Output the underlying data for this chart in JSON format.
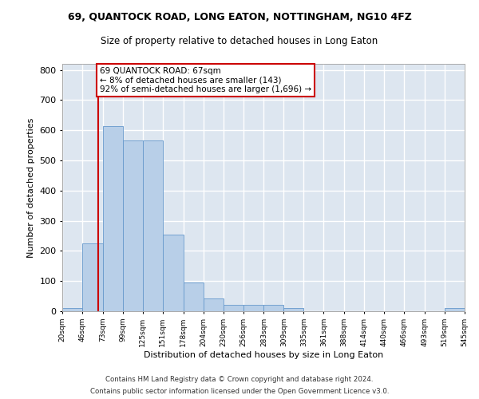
{
  "title_main": "69, QUANTOCK ROAD, LONG EATON, NOTTINGHAM, NG10 4FZ",
  "title_sub": "Size of property relative to detached houses in Long Eaton",
  "xlabel": "Distribution of detached houses by size in Long Eaton",
  "ylabel": "Number of detached properties",
  "bin_edges": [
    20,
    46,
    73,
    99,
    125,
    151,
    178,
    204,
    230,
    256,
    283,
    309,
    335,
    361,
    388,
    414,
    440,
    466,
    493,
    519,
    545
  ],
  "bar_heights": [
    10,
    225,
    615,
    565,
    565,
    253,
    96,
    43,
    20,
    20,
    20,
    10,
    0,
    0,
    0,
    0,
    0,
    0,
    0,
    10
  ],
  "bar_color": "#b8cfe8",
  "bar_edgecolor": "#6699cc",
  "bg_color": "#dde6f0",
  "grid_color": "#ffffff",
  "vline_x": 67,
  "vline_color": "#cc0000",
  "ylim": [
    0,
    820
  ],
  "yticks": [
    0,
    100,
    200,
    300,
    400,
    500,
    600,
    700,
    800
  ],
  "annotation_line1": "69 QUANTOCK ROAD: 67sqm",
  "annotation_line2": "← 8% of detached houses are smaller (143)",
  "annotation_line3": "92% of semi-detached houses are larger (1,696) →",
  "annotation_box_color": "#ffffff",
  "annotation_box_edgecolor": "#cc0000",
  "footer_line1": "Contains HM Land Registry data © Crown copyright and database right 2024.",
  "footer_line2": "Contains public sector information licensed under the Open Government Licence v3.0.",
  "tick_labels": [
    "20sqm",
    "46sqm",
    "73sqm",
    "99sqm",
    "125sqm",
    "151sqm",
    "178sqm",
    "204sqm",
    "230sqm",
    "256sqm",
    "283sqm",
    "309sqm",
    "335sqm",
    "361sqm",
    "388sqm",
    "414sqm",
    "440sqm",
    "466sqm",
    "493sqm",
    "519sqm",
    "545sqm"
  ]
}
